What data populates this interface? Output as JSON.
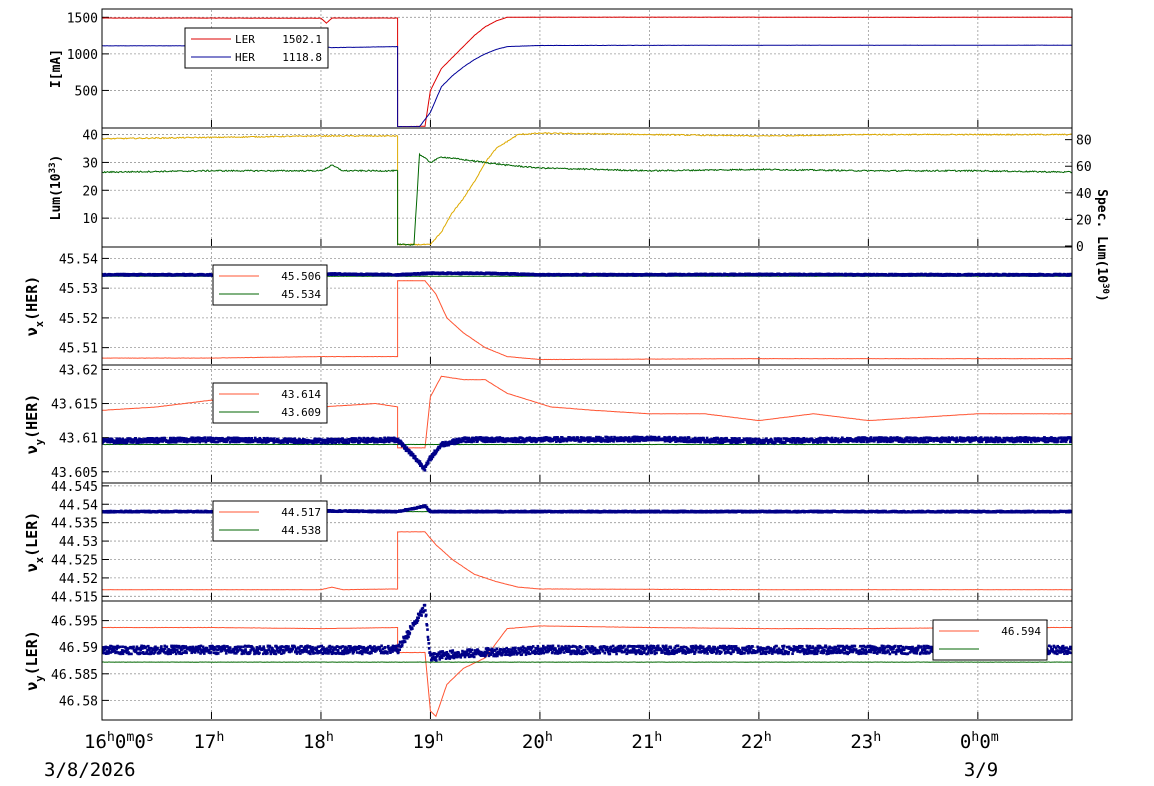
{
  "chart_data": [
    {
      "type": "line",
      "panel": "current",
      "ylabel": "I[mA]",
      "ylim": [
        0,
        1600
      ],
      "yticks": [
        500,
        1000,
        1500
      ],
      "legend": [
        {
          "name": "LER",
          "value": "1502.1",
          "color": "#dd0000"
        },
        {
          "name": "HER",
          "value": "1118.8",
          "color": "#000099"
        }
      ],
      "series": [
        {
          "name": "LER",
          "color": "#dd0000",
          "x": [
            16.0,
            17.0,
            18.0,
            18.05,
            18.1,
            18.7,
            18.7,
            18.75,
            18.95,
            19.0,
            19.1,
            19.2,
            19.3,
            19.4,
            19.5,
            19.6,
            19.7,
            20.0,
            22.0,
            23.0,
            24.0,
            24.86
          ],
          "y": [
            1490,
            1490,
            1488,
            1420,
            1490,
            1490,
            5,
            5,
            10,
            500,
            800,
            950,
            1100,
            1250,
            1370,
            1450,
            1500,
            1502,
            1502,
            1500,
            1501,
            1502
          ]
        },
        {
          "name": "HER",
          "color": "#000099",
          "x": [
            16.0,
            17.0,
            18.0,
            18.1,
            18.7,
            18.7,
            18.9,
            19.0,
            19.1,
            19.2,
            19.3,
            19.4,
            19.5,
            19.6,
            19.7,
            20.0,
            22.0,
            24.0,
            24.86
          ],
          "y": [
            1110,
            1110,
            1108,
            1085,
            1100,
            5,
            5,
            200,
            550,
            700,
            820,
            920,
            1000,
            1060,
            1100,
            1115,
            1118,
            1118,
            1119
          ]
        }
      ]
    },
    {
      "type": "line",
      "panel": "luminosity",
      "ylabel": "Lum(10",
      "ylabel_sup": "33",
      "ylabel_end": ")",
      "ylim": [
        0,
        42
      ],
      "yticks": [
        10,
        20,
        30,
        40
      ],
      "y2label": "Spec. Lum(10",
      "y2label_sup": "30",
      "y2label_end": ")",
      "y2lim": [
        0,
        88
      ],
      "y2ticks": [
        0,
        20,
        40,
        60,
        80
      ],
      "series": [
        {
          "name": "",
          "color": "#ddaa00",
          "x": [
            16.0,
            17.0,
            18.0,
            18.7,
            18.7,
            19.0,
            19.1,
            19.2,
            19.3,
            19.4,
            19.5,
            19.6,
            19.8,
            20.0,
            21.0,
            22.0,
            23.0,
            24.0,
            24.86
          ],
          "y": [
            38.5,
            39.0,
            39.5,
            39.5,
            0.5,
            0.5,
            5,
            12,
            17,
            23,
            30,
            35,
            40,
            40.5,
            40,
            39.5,
            40,
            40,
            40
          ]
        },
        {
          "name": "",
          "color": "#006600",
          "x": [
            16.0,
            17.0,
            18.0,
            18.1,
            18.2,
            18.7,
            18.7,
            18.85,
            18.9,
            19.0,
            19.1,
            19.3,
            19.5,
            19.7,
            20.0,
            21.0,
            22.0,
            23.0,
            24.0,
            24.86
          ],
          "y": [
            26.5,
            27,
            27,
            29,
            27,
            27,
            0.5,
            0.5,
            33,
            30,
            32,
            31,
            30,
            29,
            28,
            27,
            27.5,
            27,
            27,
            26.5
          ]
        }
      ]
    },
    {
      "type": "line",
      "panel": "nux_her",
      "ylabel": "ν",
      "ylabel_sub": "x",
      "ylabel_end": "(HER)",
      "ylim": [
        45.5045,
        45.5435
      ],
      "yticks": [
        45.51,
        45.52,
        45.53,
        45.54
      ],
      "yticklabels": [
        "45.51",
        "45.52",
        "45.53",
        "45.54"
      ],
      "legend": [
        {
          "name": "",
          "value": "45.506",
          "color": "#ff5533"
        },
        {
          "name": "",
          "value": "45.534",
          "color": "#006600"
        }
      ],
      "series": [
        {
          "name": "",
          "color": "#ff5533",
          "x": [
            16.0,
            17.0,
            18.0,
            18.7,
            18.7,
            18.95,
            19.05,
            19.15,
            19.3,
            19.5,
            19.7,
            20.0,
            22.0,
            24.0,
            24.86
          ],
          "y": [
            45.5065,
            45.5065,
            45.507,
            45.507,
            45.5325,
            45.5325,
            45.528,
            45.52,
            45.515,
            45.51,
            45.507,
            45.506,
            45.5063,
            45.5063,
            45.5063
          ]
        },
        {
          "name": "",
          "color": "#006600",
          "x": [
            16.0,
            24.86
          ],
          "y": [
            45.534,
            45.534
          ]
        },
        {
          "name": "",
          "color": "#000088",
          "style": "dots",
          "x": [
            16.0,
            17.0,
            18.0,
            18.7,
            19.0,
            19.5,
            20.0,
            21.0,
            22.0,
            23.0,
            24.0,
            24.86
          ],
          "y": [
            45.5345,
            45.5345,
            45.5348,
            45.5345,
            45.535,
            45.535,
            45.5345,
            45.5345,
            45.5346,
            45.5345,
            45.5345,
            45.5345
          ]
        }
      ]
    },
    {
      "type": "line",
      "panel": "nuy_her",
      "ylabel": "ν",
      "ylabel_sub": "y",
      "ylabel_end": "(HER)",
      "ylim": [
        43.6035,
        43.6205
      ],
      "yticks": [
        43.605,
        43.61,
        43.615,
        43.62
      ],
      "yticklabels": [
        "43.605",
        "43.61",
        "43.615",
        "43.62"
      ],
      "legend": [
        {
          "name": "",
          "value": "43.614",
          "color": "#ff5533"
        },
        {
          "name": "",
          "value": "43.609",
          "color": "#006600"
        }
      ],
      "series": [
        {
          "name": "",
          "color": "#ff5533",
          "x": [
            16.0,
            16.5,
            17.0,
            17.5,
            18.0,
            18.5,
            18.7,
            18.7,
            18.95,
            19.0,
            19.1,
            19.3,
            19.5,
            19.7,
            19.9,
            20.1,
            20.5,
            21.0,
            21.5,
            22.0,
            22.5,
            23.0,
            23.5,
            24.0,
            24.5,
            24.86
          ],
          "y": [
            43.614,
            43.6145,
            43.6155,
            43.6145,
            43.6145,
            43.615,
            43.6145,
            43.6085,
            43.6085,
            43.616,
            43.619,
            43.6185,
            43.6185,
            43.6165,
            43.6155,
            43.6145,
            43.614,
            43.6135,
            43.6135,
            43.6125,
            43.6135,
            43.6125,
            43.613,
            43.6135,
            43.6135,
            43.6135
          ]
        },
        {
          "name": "",
          "color": "#006600",
          "x": [
            16.0,
            24.86
          ],
          "y": [
            43.609,
            43.609
          ]
        },
        {
          "name": "",
          "color": "#000088",
          "style": "dots",
          "x": [
            16.0,
            17.0,
            18.0,
            18.7,
            18.95,
            19.0,
            19.1,
            19.3,
            20.0,
            21.0,
            22.0,
            23.0,
            24.0,
            24.86
          ],
          "y": [
            43.6095,
            43.6097,
            43.6095,
            43.6097,
            43.6055,
            43.607,
            43.609,
            43.6097,
            43.6097,
            43.6098,
            43.6095,
            43.6097,
            43.6097,
            43.6097
          ]
        }
      ]
    },
    {
      "type": "line",
      "panel": "nux_ler",
      "ylabel": "ν",
      "ylabel_sub": "x",
      "ylabel_end": "(LER)",
      "ylim": [
        44.514,
        44.5455
      ],
      "yticks": [
        44.515,
        44.52,
        44.525,
        44.53,
        44.535,
        44.54,
        44.545
      ],
      "yticklabels": [
        "44.515",
        "44.52",
        "44.525",
        "44.53",
        "44.535",
        "44.54",
        "44.545"
      ],
      "legend": [
        {
          "name": "",
          "value": "44.517",
          "color": "#ff5533"
        },
        {
          "name": "",
          "value": "44.538",
          "color": "#006600"
        }
      ],
      "series": [
        {
          "name": "",
          "color": "#ff5533",
          "x": [
            16.0,
            17.0,
            18.0,
            18.1,
            18.2,
            18.7,
            18.7,
            18.95,
            19.05,
            19.2,
            19.4,
            19.6,
            19.8,
            20.0,
            22.0,
            24.0,
            24.86
          ],
          "y": [
            44.5168,
            44.5168,
            44.5168,
            44.5175,
            44.5168,
            44.517,
            44.5325,
            44.5325,
            44.529,
            44.525,
            44.521,
            44.519,
            44.5175,
            44.517,
            44.5168,
            44.5168,
            44.5168
          ]
        },
        {
          "name": "",
          "color": "#006600",
          "x": [
            16.0,
            24.86
          ],
          "y": [
            44.538,
            44.538
          ]
        },
        {
          "name": "",
          "color": "#000088",
          "style": "dots",
          "x": [
            16.0,
            17.0,
            18.0,
            18.7,
            18.95,
            19.0,
            20.0,
            21.0,
            22.0,
            23.0,
            24.0,
            24.86
          ],
          "y": [
            44.538,
            44.538,
            44.5382,
            44.538,
            44.5395,
            44.538,
            44.538,
            44.538,
            44.538,
            44.538,
            44.538,
            44.538
          ]
        }
      ]
    },
    {
      "type": "line",
      "panel": "nuy_ler",
      "ylabel": "ν",
      "ylabel_sub": "y",
      "ylabel_end": "(LER)",
      "ylim": [
        46.5765,
        46.5985
      ],
      "yticks": [
        46.58,
        46.585,
        46.59,
        46.595
      ],
      "yticklabels": [
        "46.58",
        "46.585",
        "46.59",
        "46.595"
      ],
      "legend": [
        {
          "name": "",
          "value": "46.594",
          "color": "#ff5533"
        },
        {
          "name": "",
          "value": "",
          "color": "#006600"
        }
      ],
      "series": [
        {
          "name": "",
          "color": "#ff5533",
          "x": [
            16.0,
            17.0,
            18.0,
            18.7,
            18.7,
            18.95,
            19.0,
            19.05,
            19.15,
            19.3,
            19.5,
            19.7,
            20.0,
            21.0,
            22.0,
            23.0,
            24.0,
            24.86
          ],
          "y": [
            46.5937,
            46.5937,
            46.5935,
            46.5937,
            46.589,
            46.589,
            46.578,
            46.577,
            46.583,
            46.586,
            46.588,
            46.5935,
            46.594,
            46.5937,
            46.5935,
            46.5935,
            46.5937,
            46.5937
          ]
        },
        {
          "name": "",
          "color": "#006600",
          "x": [
            16.0,
            24.86
          ],
          "y": [
            46.5872,
            46.5872
          ]
        },
        {
          "name": "",
          "color": "#000088",
          "style": "dots",
          "x": [
            16.0,
            17.0,
            18.0,
            18.7,
            18.95,
            19.0,
            19.1,
            19.5,
            20.0,
            21.0,
            22.0,
            23.0,
            24.0,
            24.86
          ],
          "y": [
            46.5895,
            46.5895,
            46.5895,
            46.5895,
            46.5975,
            46.588,
            46.5885,
            46.589,
            46.5895,
            46.5895,
            46.5895,
            46.5895,
            46.5895,
            46.5895
          ]
        }
      ]
    }
  ],
  "xaxis": {
    "xlim": [
      16.0,
      24.86
    ],
    "ticks": [
      {
        "x": 16,
        "main": "16",
        "rest": [
          {
            "sup": "h"
          },
          {
            "text": "0"
          },
          {
            "sup": "m"
          },
          {
            "text": "0"
          },
          {
            "sup": "s"
          }
        ]
      },
      {
        "x": 17,
        "main": "17",
        "rest": [
          {
            "sup": "h"
          }
        ]
      },
      {
        "x": 18,
        "main": "18",
        "rest": [
          {
            "sup": "h"
          }
        ]
      },
      {
        "x": 19,
        "main": "19",
        "rest": [
          {
            "sup": "h"
          }
        ]
      },
      {
        "x": 20,
        "main": "20",
        "rest": [
          {
            "sup": "h"
          }
        ]
      },
      {
        "x": 21,
        "main": "21",
        "rest": [
          {
            "sup": "h"
          }
        ]
      },
      {
        "x": 22,
        "main": "22",
        "rest": [
          {
            "sup": "h"
          }
        ]
      },
      {
        "x": 23,
        "main": "23",
        "rest": [
          {
            "sup": "h"
          }
        ]
      },
      {
        "x": 24,
        "main": "0",
        "rest": [
          {
            "sup": "h"
          },
          {
            "text": "0"
          },
          {
            "sup": "m"
          }
        ]
      }
    ],
    "dates": [
      {
        "x": 16,
        "label": "3/8/2026"
      },
      {
        "x": 24,
        "label": "3/9"
      }
    ]
  },
  "colors": {
    "grid": "#999999",
    "frame": "#000000",
    "background": "#ffffff"
  }
}
